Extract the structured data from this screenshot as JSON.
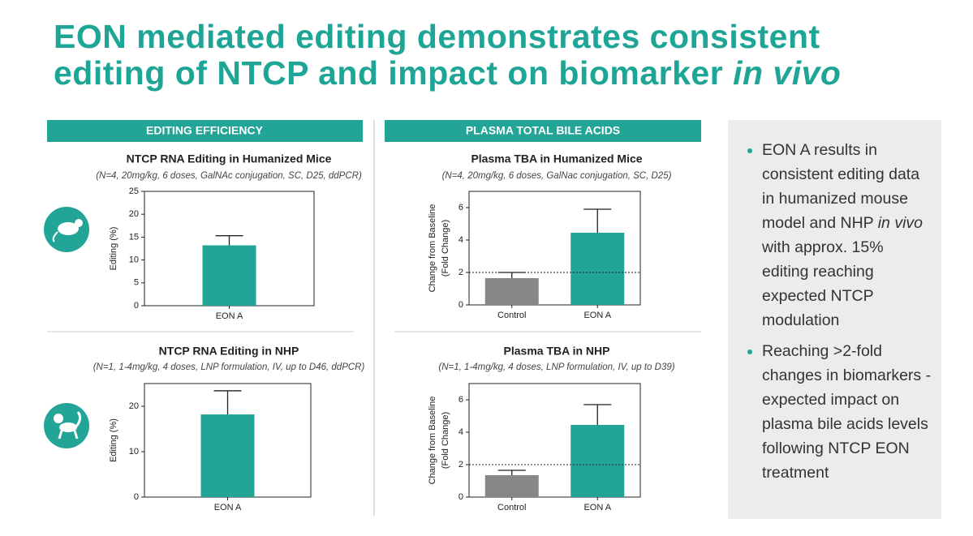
{
  "title_lines": [
    "EON mediated editing demonstrates consistent",
    "editing of NTCP and impact on biomarker "
  ],
  "title_italic": "in vivo",
  "section_headers": [
    "EDITING EFFICIENCY",
    "PLASMA TOTAL BILE ACIDS"
  ],
  "bullets": [
    [
      "EON A results in consistent editing data in humanized mouse model and NHP ",
      "in vivo",
      " with approx. 15% editing reaching expected NTCP modulation"
    ],
    [
      "Reaching >2-fold changes in biomarkers - expected impact on plasma bile acids levels following NTCP EON treatment"
    ]
  ],
  "chart_data": [
    {
      "type": "bar",
      "title": "NTCP RNA Editing in Humanized Mice",
      "subtitle": "(N=4, 20mg/kg, 6 doses, GalNAc conjugation, SC, D25, ddPCR)",
      "ylabel": [
        "Editing (%)"
      ],
      "categories": [
        "EON A"
      ],
      "values": [
        13.2
      ],
      "errors": [
        2.1
      ],
      "colors": [
        "#22a497"
      ],
      "ylim": [
        0,
        25
      ],
      "yticks": [
        0,
        5,
        10,
        15,
        20,
        25
      ]
    },
    {
      "type": "bar",
      "title": "Plasma TBA in Humanized Mice",
      "subtitle": "(N=4, 20mg/kg, 6 doses, GalNac conjugation, SC, D25)",
      "ylabel": [
        "Change from Baseline",
        "(Fold  Change)"
      ],
      "categories": [
        "Control",
        "EON A"
      ],
      "values": [
        1.65,
        4.45
      ],
      "errors": [
        0.35,
        1.45
      ],
      "colors": [
        "#878787",
        "#22a497"
      ],
      "ylim": [
        0,
        7
      ],
      "yticks": [
        0,
        2,
        4,
        6
      ],
      "hline": 2
    },
    {
      "type": "bar",
      "title": "NTCP RNA Editing in NHP",
      "subtitle": "(N=1, 1-4mg/kg, 4 doses, LNP formulation, IV, up to D46, ddPCR)",
      "ylabel": [
        "Editing (%)"
      ],
      "categories": [
        "EON A"
      ],
      "values": [
        18.2
      ],
      "errors": [
        5.2
      ],
      "colors": [
        "#22a497"
      ],
      "ylim": [
        0,
        25
      ],
      "yticks": [
        0,
        10,
        20
      ]
    },
    {
      "type": "bar",
      "title": "Plasma TBA in NHP",
      "subtitle": "(N=1, 1-4mg/kg, 4 doses, LNP formulation, IV, up to D39)",
      "ylabel": [
        "Change from Baseline",
        "(Fold  Change)"
      ],
      "categories": [
        "Control",
        "EON A"
      ],
      "values": [
        1.35,
        4.45
      ],
      "errors": [
        0.3,
        1.25
      ],
      "colors": [
        "#878787",
        "#22a497"
      ],
      "ylim": [
        0,
        7
      ],
      "yticks": [
        0,
        2,
        4,
        6
      ],
      "hline": 2
    }
  ]
}
